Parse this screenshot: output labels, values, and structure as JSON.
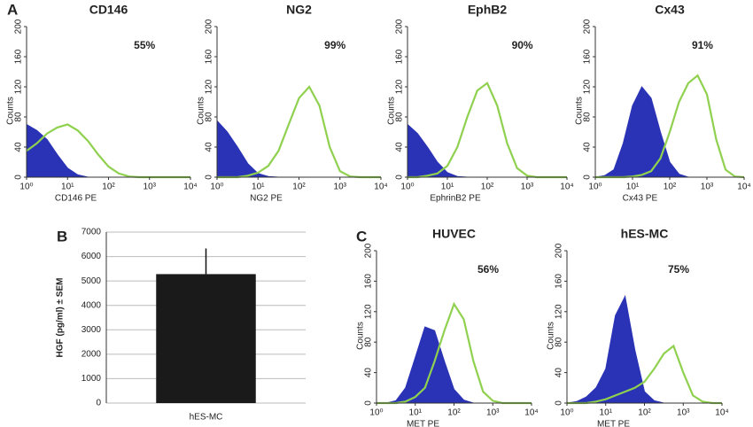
{
  "chart_data": [
    {
      "type": "line",
      "panel_label": "A",
      "title": "CD146",
      "annotation": "55%",
      "xlabel": "CD146 PE",
      "ylabel": "Counts",
      "xscale": "log",
      "x": [
        1,
        1.78,
        3.16,
        5.62,
        10,
        17.8,
        31.6,
        56.2,
        100,
        178,
        316,
        562,
        1000,
        1778,
        3162,
        5623,
        10000
      ],
      "xlim": [
        1,
        10000
      ],
      "xticks": [
        {
          "value": 1,
          "label": "10⁰"
        },
        {
          "value": 10,
          "label": "10¹"
        },
        {
          "value": 100,
          "label": "10²"
        },
        {
          "value": 1000,
          "label": "10³"
        },
        {
          "value": 10000,
          "label": "10⁴"
        }
      ],
      "ylim": [
        0,
        200
      ],
      "yticks": [
        0,
        40,
        80,
        120,
        160,
        200
      ],
      "series": [
        {
          "color": "#2a33b5",
          "fill": true,
          "values": [
            70,
            62,
            50,
            30,
            12,
            3,
            0,
            0,
            0,
            0,
            0,
            0,
            0,
            0,
            0,
            0,
            0
          ]
        },
        {
          "color": "#8fd14f",
          "fill": false,
          "values": [
            35,
            45,
            58,
            66,
            70,
            62,
            48,
            30,
            14,
            5,
            1,
            0,
            0,
            0,
            0,
            0,
            0
          ]
        }
      ]
    },
    {
      "type": "line",
      "title": "NG2",
      "annotation": "99%",
      "xlabel": "NG2 PE",
      "ylabel": "Counts",
      "xscale": "log",
      "x": [
        1,
        1.78,
        3.16,
        5.62,
        10,
        17.8,
        31.6,
        56.2,
        100,
        178,
        316,
        562,
        1000,
        1778,
        3162,
        5623,
        10000
      ],
      "xlim": [
        1,
        10000
      ],
      "xticks": [
        {
          "value": 1,
          "label": "10⁰"
        },
        {
          "value": 10,
          "label": "10¹"
        },
        {
          "value": 100,
          "label": "10²"
        },
        {
          "value": 1000,
          "label": "10³"
        },
        {
          "value": 10000,
          "label": "10⁴"
        }
      ],
      "ylim": [
        0,
        200
      ],
      "yticks": [
        0,
        40,
        80,
        120,
        160,
        200
      ],
      "series": [
        {
          "color": "#2a33b5",
          "fill": true,
          "values": [
            75,
            60,
            40,
            18,
            5,
            1,
            0,
            0,
            0,
            0,
            0,
            0,
            0,
            0,
            0,
            0,
            0
          ]
        },
        {
          "color": "#8fd14f",
          "fill": false,
          "values": [
            0,
            0,
            0,
            2,
            6,
            15,
            35,
            70,
            105,
            120,
            95,
            40,
            8,
            1,
            0,
            0,
            0
          ]
        }
      ]
    },
    {
      "type": "line",
      "title": "EphB2",
      "annotation": "90%",
      "xlabel": "EphrinB2 PE",
      "ylabel": "Counts",
      "xscale": "log",
      "x": [
        1,
        1.78,
        3.16,
        5.62,
        10,
        17.8,
        31.6,
        56.2,
        100,
        178,
        316,
        562,
        1000,
        1778,
        3162,
        5623,
        10000
      ],
      "xlim": [
        1,
        10000
      ],
      "xticks": [
        {
          "value": 1,
          "label": "10⁰"
        },
        {
          "value": 10,
          "label": "10¹"
        },
        {
          "value": 100,
          "label": "10²"
        },
        {
          "value": 1000,
          "label": "10³"
        },
        {
          "value": 10000,
          "label": "10⁴"
        }
      ],
      "ylim": [
        0,
        200
      ],
      "yticks": [
        0,
        40,
        80,
        120,
        160,
        200
      ],
      "series": [
        {
          "color": "#2a33b5",
          "fill": true,
          "values": [
            70,
            58,
            40,
            20,
            6,
            1,
            0,
            0,
            0,
            0,
            0,
            0,
            0,
            0,
            0,
            0,
            0
          ]
        },
        {
          "color": "#8fd14f",
          "fill": false,
          "values": [
            0,
            0,
            2,
            5,
            15,
            40,
            80,
            115,
            125,
            95,
            45,
            12,
            2,
            0,
            0,
            0,
            0
          ]
        }
      ]
    },
    {
      "type": "line",
      "title": "Cx43",
      "annotation": "91%",
      "xlabel": "Cx43 PE",
      "ylabel": "Counts",
      "xscale": "log",
      "x": [
        1,
        1.78,
        3.16,
        5.62,
        10,
        17.8,
        31.6,
        56.2,
        100,
        178,
        316,
        562,
        1000,
        1778,
        3162,
        5623,
        10000
      ],
      "xlim": [
        1,
        10000
      ],
      "xticks": [
        {
          "value": 1,
          "label": "10⁰"
        },
        {
          "value": 10,
          "label": "10¹"
        },
        {
          "value": 100,
          "label": "10²"
        },
        {
          "value": 1000,
          "label": "10³"
        },
        {
          "value": 10000,
          "label": "10⁴"
        }
      ],
      "ylim": [
        0,
        200
      ],
      "yticks": [
        0,
        40,
        80,
        120,
        160,
        200
      ],
      "series": [
        {
          "color": "#2a33b5",
          "fill": true,
          "values": [
            0,
            2,
            10,
            45,
            95,
            120,
            105,
            60,
            20,
            4,
            0,
            0,
            0,
            0,
            0,
            0,
            0
          ]
        },
        {
          "color": "#8fd14f",
          "fill": false,
          "values": [
            0,
            0,
            0,
            0,
            1,
            3,
            8,
            25,
            60,
            100,
            125,
            135,
            110,
            50,
            10,
            1,
            0
          ]
        }
      ]
    },
    {
      "type": "bar",
      "panel_label": "B",
      "ylabel": "HGF (pg/ml) ± SEM",
      "categories": [
        "hES-MC"
      ],
      "values": [
        5280
      ],
      "errors": [
        1050
      ],
      "color": "#1a1a1a",
      "ylim": [
        0,
        7000
      ],
      "yticks": [
        0,
        1000,
        2000,
        3000,
        4000,
        5000,
        6000,
        7000
      ],
      "grid": true
    },
    {
      "type": "line",
      "panel_label": "C",
      "title": "HUVEC",
      "annotation": "56%",
      "xlabel": "MET PE",
      "ylabel": "Counts",
      "xscale": "log",
      "x": [
        1,
        1.78,
        3.16,
        5.62,
        10,
        17.8,
        31.6,
        56.2,
        100,
        178,
        316,
        562,
        1000,
        1778,
        3162,
        5623,
        10000
      ],
      "xlim": [
        1,
        10000
      ],
      "xticks": [
        {
          "value": 1,
          "label": "10⁰"
        },
        {
          "value": 10,
          "label": "10¹"
        },
        {
          "value": 100,
          "label": "10²"
        },
        {
          "value": 1000,
          "label": "10³"
        },
        {
          "value": 10000,
          "label": "10⁴"
        }
      ],
      "ylim": [
        0,
        200
      ],
      "yticks": [
        0,
        40,
        80,
        120,
        160,
        200
      ],
      "series": [
        {
          "color": "#2a33b5",
          "fill": true,
          "values": [
            0,
            0,
            3,
            20,
            60,
            100,
            95,
            55,
            18,
            4,
            0,
            0,
            0,
            0,
            0,
            0,
            0
          ]
        },
        {
          "color": "#8fd14f",
          "fill": false,
          "values": [
            0,
            0,
            0,
            2,
            8,
            20,
            55,
            95,
            130,
            110,
            55,
            15,
            3,
            0,
            0,
            0,
            0
          ]
        }
      ]
    },
    {
      "type": "line",
      "title": "hES-MC",
      "annotation": "75%",
      "xlabel": "MET PE",
      "ylabel": "Counts",
      "xscale": "log",
      "x": [
        1,
        1.78,
        3.16,
        5.62,
        10,
        17.8,
        31.6,
        56.2,
        100,
        178,
        316,
        562,
        1000,
        1778,
        3162,
        5623,
        10000
      ],
      "xlim": [
        1,
        10000
      ],
      "xticks": [
        {
          "value": 1,
          "label": "10⁰"
        },
        {
          "value": 10,
          "label": "10¹"
        },
        {
          "value": 100,
          "label": "10²"
        },
        {
          "value": 1000,
          "label": "10³"
        },
        {
          "value": 10000,
          "label": "10⁴"
        }
      ],
      "ylim": [
        0,
        200
      ],
      "yticks": [
        0,
        40,
        80,
        120,
        160,
        200
      ],
      "series": [
        {
          "color": "#2a33b5",
          "fill": true,
          "values": [
            0,
            2,
            8,
            20,
            45,
            115,
            140,
            70,
            15,
            3,
            0,
            0,
            0,
            0,
            0,
            0,
            0
          ]
        },
        {
          "color": "#8fd14f",
          "fill": false,
          "values": [
            0,
            0,
            0,
            2,
            5,
            10,
            15,
            20,
            28,
            45,
            65,
            75,
            40,
            10,
            2,
            0,
            0
          ]
        }
      ]
    }
  ]
}
